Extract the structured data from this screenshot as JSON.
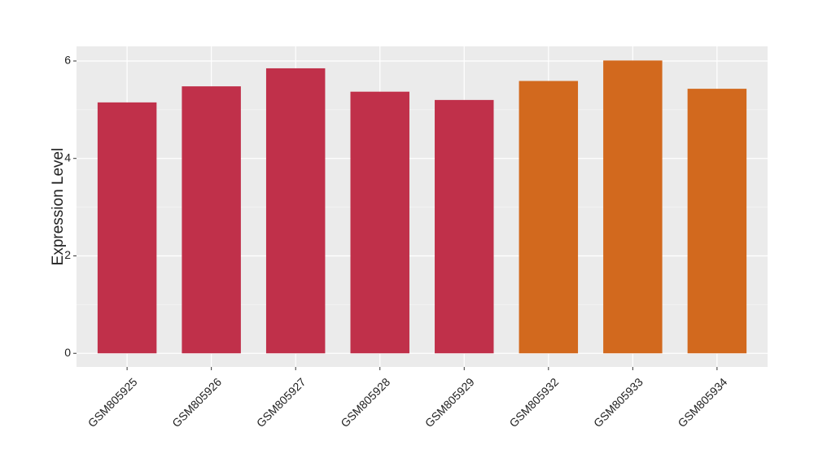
{
  "chart_data": {
    "type": "bar",
    "y_label": "Expression Level",
    "categories": [
      "GSM805925",
      "GSM805926",
      "GSM805927",
      "GSM805928",
      "GSM805929",
      "GSM805932",
      "GSM805933",
      "GSM805934"
    ],
    "values": [
      5.15,
      5.48,
      5.85,
      5.37,
      5.2,
      5.59,
      6.01,
      5.43
    ],
    "colors": [
      "#c0304a",
      "#c0304a",
      "#c0304a",
      "#c0304a",
      "#c0304a",
      "#d2691e",
      "#d2691e",
      "#d2691e"
    ],
    "ylim": [
      -0.28,
      6.3
    ],
    "yticks": [
      0,
      2,
      4,
      6
    ],
    "yminor": [
      1,
      3,
      5
    ],
    "grid": true
  }
}
